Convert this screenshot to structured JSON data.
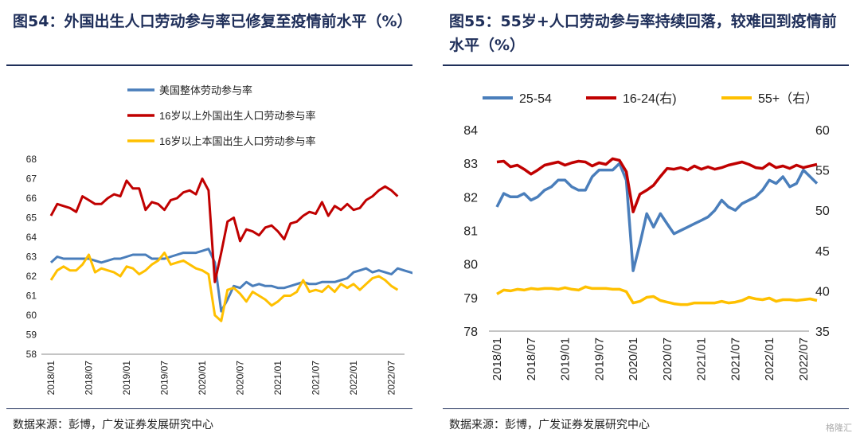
{
  "panels": [
    {
      "title": "图54：外国出生人口劳动参与率已修复至疫情前水平（%）",
      "source": "数据来源：彭博，广发证券发展研究中心"
    },
    {
      "title": "图55：55岁+人口劳动参与率持续回落，较难回到疫情前水平（%）",
      "source": "数据来源：彭博，广发证券发展研究中心"
    }
  ],
  "watermark": "格隆汇",
  "chart_data": [
    {
      "type": "line",
      "x_ticks": [
        "2018/01",
        "2018/07",
        "2019/01",
        "2019/07",
        "2020/01",
        "2020/07",
        "2021/01",
        "2021/07",
        "2022/01",
        "2022/07"
      ],
      "ylim": [
        58,
        68
      ],
      "y_ticks": [
        58,
        59,
        60,
        61,
        62,
        63,
        64,
        65,
        66,
        67,
        68
      ],
      "legend_position": "top-left",
      "series": [
        {
          "name": "美国整体劳动参与率",
          "color": "#4a7ebb",
          "values": [
            62.7,
            63.0,
            62.9,
            62.9,
            62.9,
            62.9,
            62.9,
            62.8,
            62.7,
            62.8,
            62.9,
            62.9,
            63.0,
            63.1,
            63.1,
            63.1,
            62.9,
            62.9,
            62.9,
            63.0,
            63.1,
            63.2,
            63.2,
            63.2,
            63.3,
            63.4,
            62.7,
            60.2,
            60.8,
            61.5,
            61.4,
            61.7,
            61.5,
            61.6,
            61.5,
            61.5,
            61.4,
            61.4,
            61.5,
            61.6,
            61.7,
            61.6,
            61.6,
            61.7,
            61.7,
            61.7,
            61.8,
            61.9,
            62.2,
            62.3,
            62.4,
            62.2,
            62.3,
            62.2,
            62.1,
            62.4,
            62.3,
            62.2,
            62.1
          ]
        },
        {
          "name": "16岁以上外国出生人口劳动参与率",
          "color": "#c00000",
          "values": [
            65.1,
            65.7,
            65.6,
            65.5,
            65.3,
            66.1,
            65.9,
            65.7,
            65.7,
            66.0,
            66.2,
            66.1,
            66.9,
            66.5,
            66.5,
            65.4,
            65.8,
            65.7,
            65.4,
            65.9,
            66.0,
            66.3,
            66.4,
            66.2,
            67.0,
            66.4,
            61.7,
            63.2,
            64.8,
            65.0,
            63.8,
            64.4,
            64.3,
            64.1,
            64.5,
            64.6,
            64.3,
            63.9,
            64.7,
            64.8,
            65.1,
            65.3,
            65.2,
            65.8,
            65.1,
            65.6,
            65.4,
            65.7,
            65.4,
            65.5,
            65.9,
            66.1,
            66.4,
            66.6,
            66.4,
            66.1
          ]
        },
        {
          "name": "16岁以上本国出生人口劳动参与率",
          "color": "#ffc000",
          "values": [
            61.8,
            62.3,
            62.5,
            62.3,
            62.3,
            62.6,
            63.1,
            62.2,
            62.4,
            62.3,
            62.2,
            62.0,
            62.5,
            62.4,
            62.1,
            62.3,
            62.6,
            62.8,
            63.2,
            62.6,
            62.7,
            62.8,
            62.6,
            62.4,
            62.3,
            62.1,
            60.0,
            59.7,
            61.3,
            61.4,
            61.1,
            60.7,
            61.2,
            61.0,
            60.8,
            60.5,
            60.7,
            61.0,
            61.0,
            61.2,
            61.8,
            61.2,
            61.3,
            61.2,
            61.5,
            61.2,
            61.6,
            61.4,
            61.6,
            61.3,
            61.6,
            61.9,
            62.0,
            61.8,
            61.5,
            61.3
          ]
        }
      ]
    },
    {
      "type": "line",
      "x_ticks": [
        "2018/01",
        "2018/07",
        "2019/01",
        "2019/07",
        "2020/01",
        "2020/07",
        "2021/01",
        "2021/07",
        "2022/01",
        "2022/07"
      ],
      "ylim_left": [
        78,
        84
      ],
      "y_ticks_left": [
        78,
        79,
        80,
        81,
        82,
        83,
        84
      ],
      "ylim_right": [
        35,
        60
      ],
      "y_ticks_right": [
        35,
        40,
        45,
        50,
        55,
        60
      ],
      "legend_position": "top",
      "series": [
        {
          "name": "25-54",
          "axis": "left",
          "color": "#4a7ebb",
          "values": [
            81.7,
            82.1,
            82.0,
            82.0,
            82.1,
            81.9,
            82.0,
            82.2,
            82.3,
            82.5,
            82.5,
            82.3,
            82.2,
            82.2,
            82.6,
            82.8,
            82.8,
            82.8,
            83.0,
            82.5,
            79.8,
            80.6,
            81.5,
            81.1,
            81.5,
            81.2,
            80.9,
            81.0,
            81.1,
            81.2,
            81.3,
            81.4,
            81.6,
            81.9,
            81.7,
            81.6,
            81.8,
            81.9,
            82.0,
            82.2,
            82.5,
            82.4,
            82.6,
            82.3,
            82.4,
            82.8,
            82.6,
            82.4
          ]
        },
        {
          "name": "16-24(右)",
          "axis": "right",
          "color": "#c00000",
          "values": [
            56.0,
            56.1,
            55.4,
            55.6,
            55.1,
            54.5,
            55.0,
            55.6,
            55.8,
            56.0,
            55.6,
            55.9,
            56.1,
            56.0,
            55.5,
            55.9,
            55.7,
            56.4,
            56.2,
            54.8,
            49.8,
            52.0,
            52.5,
            53.1,
            54.2,
            55.2,
            55.1,
            55.3,
            55.0,
            55.5,
            55.1,
            55.4,
            55.1,
            55.3,
            55.6,
            55.8,
            56.0,
            55.7,
            55.3,
            55.2,
            55.8,
            55.3,
            55.5,
            55.2,
            55.6,
            55.3,
            55.5,
            55.7
          ]
        },
        {
          "name": "55+（右）",
          "axis": "right",
          "color": "#ffc000",
          "values": [
            39.6,
            40.1,
            40.0,
            40.2,
            40.1,
            40.3,
            40.2,
            40.3,
            40.3,
            40.2,
            40.4,
            40.2,
            40.1,
            40.5,
            40.3,
            40.3,
            40.3,
            40.2,
            40.2,
            39.9,
            38.5,
            38.7,
            39.2,
            39.3,
            38.8,
            38.6,
            38.4,
            38.3,
            38.3,
            38.5,
            38.5,
            38.5,
            38.5,
            38.7,
            38.5,
            38.6,
            38.8,
            39.2,
            39.0,
            38.9,
            39.1,
            38.7,
            38.9,
            38.9,
            38.8,
            38.9,
            39.0,
            38.8
          ]
        }
      ]
    }
  ]
}
